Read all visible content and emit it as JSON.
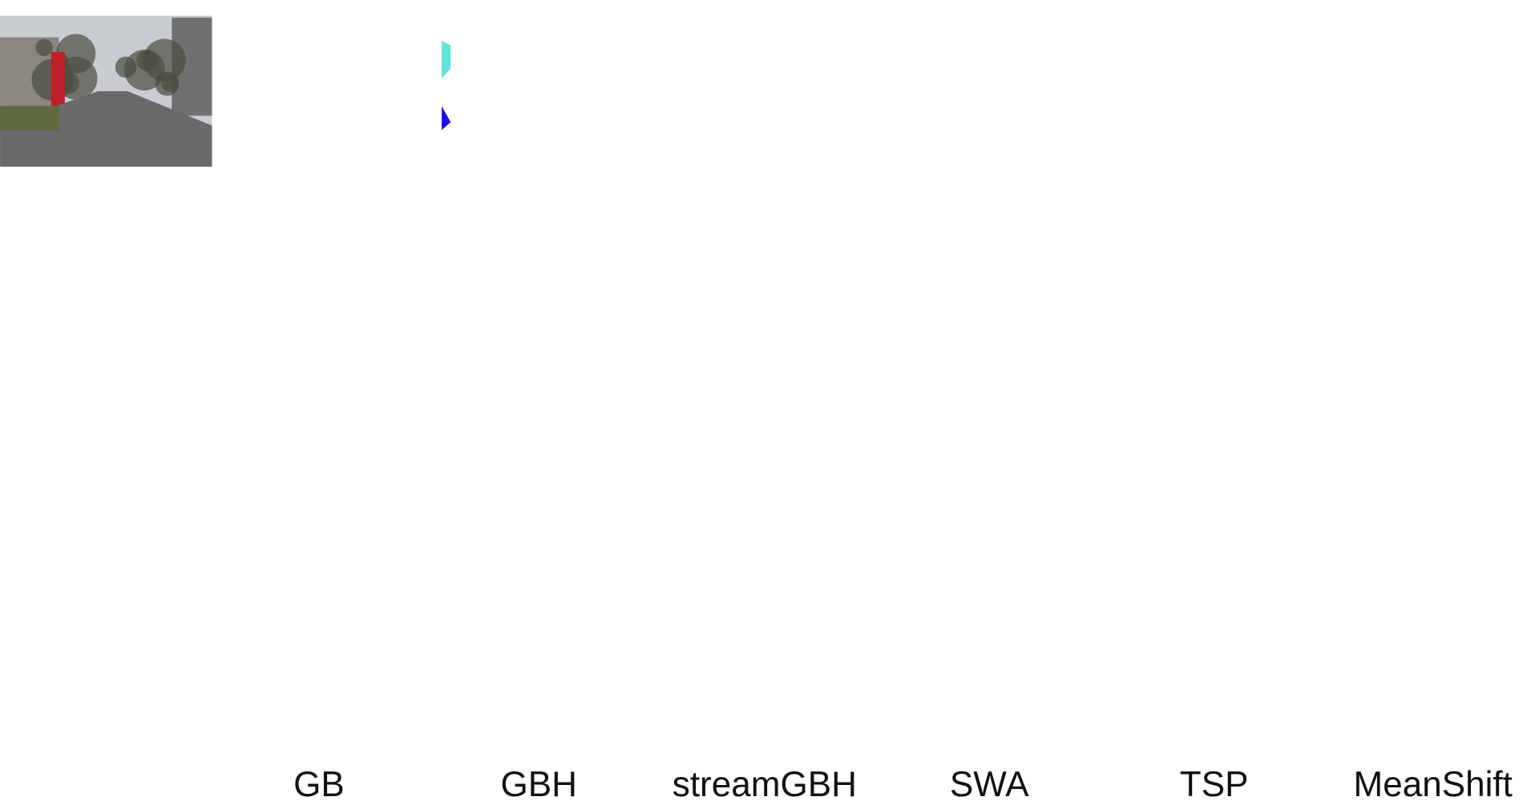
{
  "figure": {
    "column_labels": [
      "GB",
      "GBH",
      "streamGBH",
      "SWA",
      "TSP",
      "MeanShift"
    ]
  }
}
